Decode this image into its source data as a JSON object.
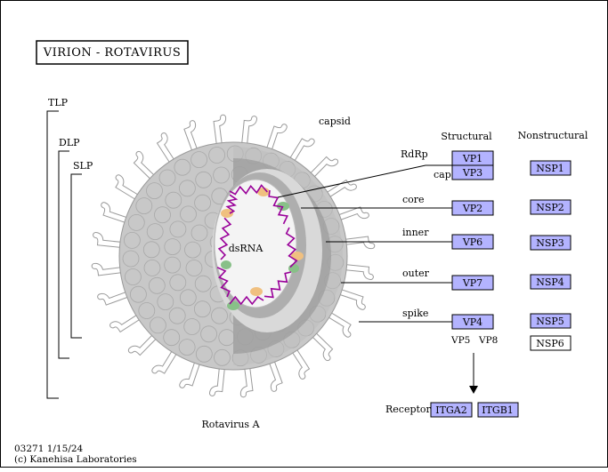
{
  "title": "VIRION  -  ROTAVIRUS",
  "layers": {
    "tlp": "TLP",
    "dlp": "DLP",
    "slp": "SLP"
  },
  "labels": {
    "capsid": "capsid",
    "dsrna": "dsRNA",
    "rdrp": "RdRp",
    "cap": "cap",
    "core": "core",
    "inner": "inner",
    "outer": "outer",
    "spike": "spike",
    "vp5": "VP5",
    "vp8": "VP8",
    "virus_name": "Rotavirus A",
    "receptor": "Receptor"
  },
  "columns": {
    "structural": "Structural",
    "nonstructural": "Nonstructural"
  },
  "structural": [
    "VP1",
    "VP3",
    "VP2",
    "VP6",
    "VP7",
    "VP4"
  ],
  "nonstructural": [
    "NSP1",
    "NSP2",
    "NSP3",
    "NSP4",
    "NSP5",
    "NSP6"
  ],
  "receptors": [
    "ITGA2",
    "ITGB1"
  ],
  "footer": {
    "id_date": "03271 1/15/24",
    "copyright": "(c) Kanehisa Laboratories"
  },
  "colors": {
    "protein_box": "#b3b3ff",
    "shell": "#c8c8c8",
    "dsrna": "#990099",
    "accent_green": "#88c088",
    "accent_orange": "#f0c080"
  }
}
